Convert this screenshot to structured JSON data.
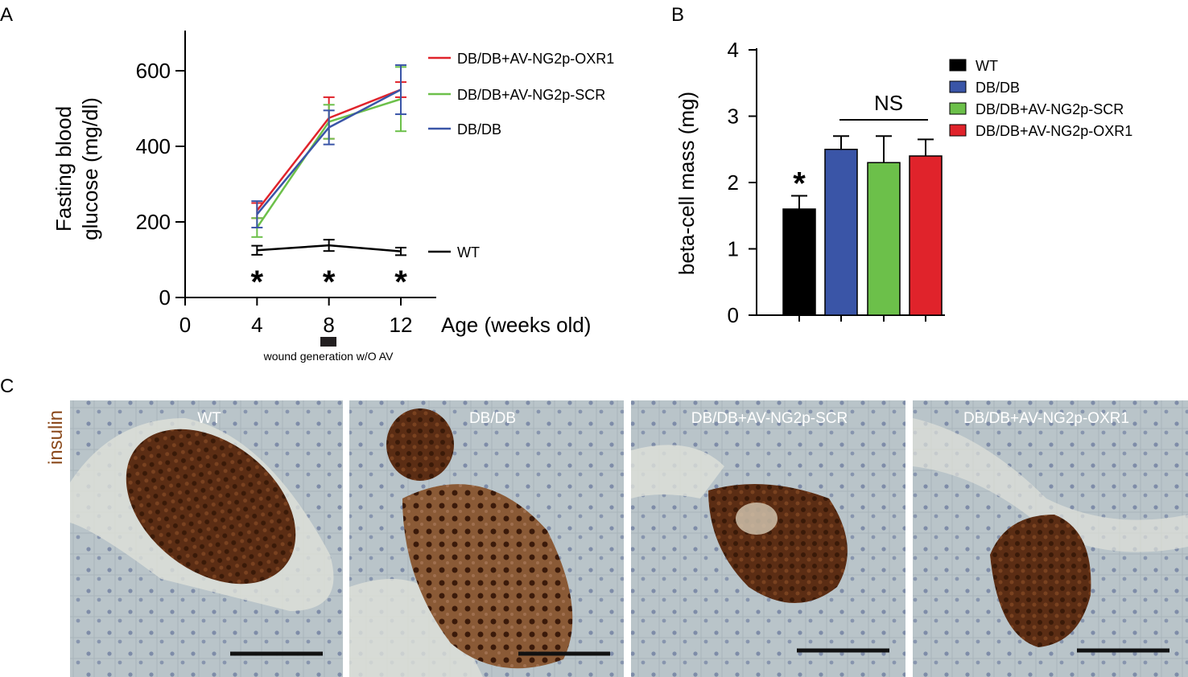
{
  "panel_letters": {
    "a": "A",
    "b": "B",
    "c": "C"
  },
  "colors": {
    "wt": "#000000",
    "dbdb": "#3a55a7",
    "scr": "#6cc04a",
    "oxr1": "#e0232b",
    "stain_bg": "#b7c3c8",
    "islet": "#4a2512",
    "insulin_label": "#8b4a1c"
  },
  "chart_data": [
    {
      "type": "line",
      "panel": "A",
      "ylabel_line1": "Fasting blood",
      "ylabel_line2": "glucose (mg/dl)",
      "xlabel": "Age (weeks old)",
      "xlim": [
        0,
        12
      ],
      "xticks": [
        0,
        4,
        8,
        12
      ],
      "ylim": [
        0,
        600
      ],
      "yticks": [
        0,
        200,
        400,
        600
      ],
      "annotation": "wound generation w/O AV",
      "significance_marks": [
        {
          "x": 4,
          "label": "*"
        },
        {
          "x": 8,
          "label": "*"
        },
        {
          "x": 12,
          "label": "*"
        }
      ],
      "series": [
        {
          "name": "DB/DB+AV-NG2p-OXR1",
          "color": "#e0232b",
          "x": [
            4,
            8,
            12
          ],
          "y": [
            230,
            475,
            550
          ],
          "err": [
            20,
            55,
            20
          ]
        },
        {
          "name": "DB/DB+AV-NG2p-SCR",
          "color": "#6cc04a",
          "x": [
            4,
            8,
            12
          ],
          "y": [
            185,
            465,
            525
          ],
          "err": [
            25,
            45,
            85
          ]
        },
        {
          "name": "DB/DB",
          "color": "#3a55a7",
          "x": [
            4,
            8,
            12
          ],
          "y": [
            220,
            450,
            550
          ],
          "err": [
            35,
            45,
            65
          ]
        },
        {
          "name": "WT",
          "color": "#000000",
          "x": [
            4,
            8,
            12
          ],
          "y": [
            125,
            138,
            122
          ],
          "err": [
            12,
            15,
            10
          ]
        }
      ]
    },
    {
      "type": "bar",
      "panel": "B",
      "ylabel": "beta-cell mass (mg)",
      "ylim": [
        0,
        4
      ],
      "yticks": [
        0,
        1,
        2,
        3,
        4
      ],
      "categories": [
        "WT",
        "DB/DB",
        "DB/DB+AV-NG2p-SCR",
        "DB/DB+AV-NG2p-OXR1"
      ],
      "values": [
        1.6,
        2.5,
        2.3,
        2.4
      ],
      "errors": [
        0.2,
        0.2,
        0.4,
        0.25
      ],
      "bar_colors": [
        "#000000",
        "#3a55a7",
        "#6cc04a",
        "#e0232b"
      ],
      "significance": [
        {
          "category": "WT",
          "label": "*"
        }
      ],
      "ns_label": "NS",
      "legend_position": "top-right"
    }
  ],
  "micrographs": {
    "stain_label": "insulin",
    "panels": [
      {
        "label": "WT"
      },
      {
        "label": "DB/DB"
      },
      {
        "label": "DB/DB+AV-NG2p-SCR"
      },
      {
        "label": "DB/DB+AV-NG2p-OXR1"
      }
    ]
  }
}
